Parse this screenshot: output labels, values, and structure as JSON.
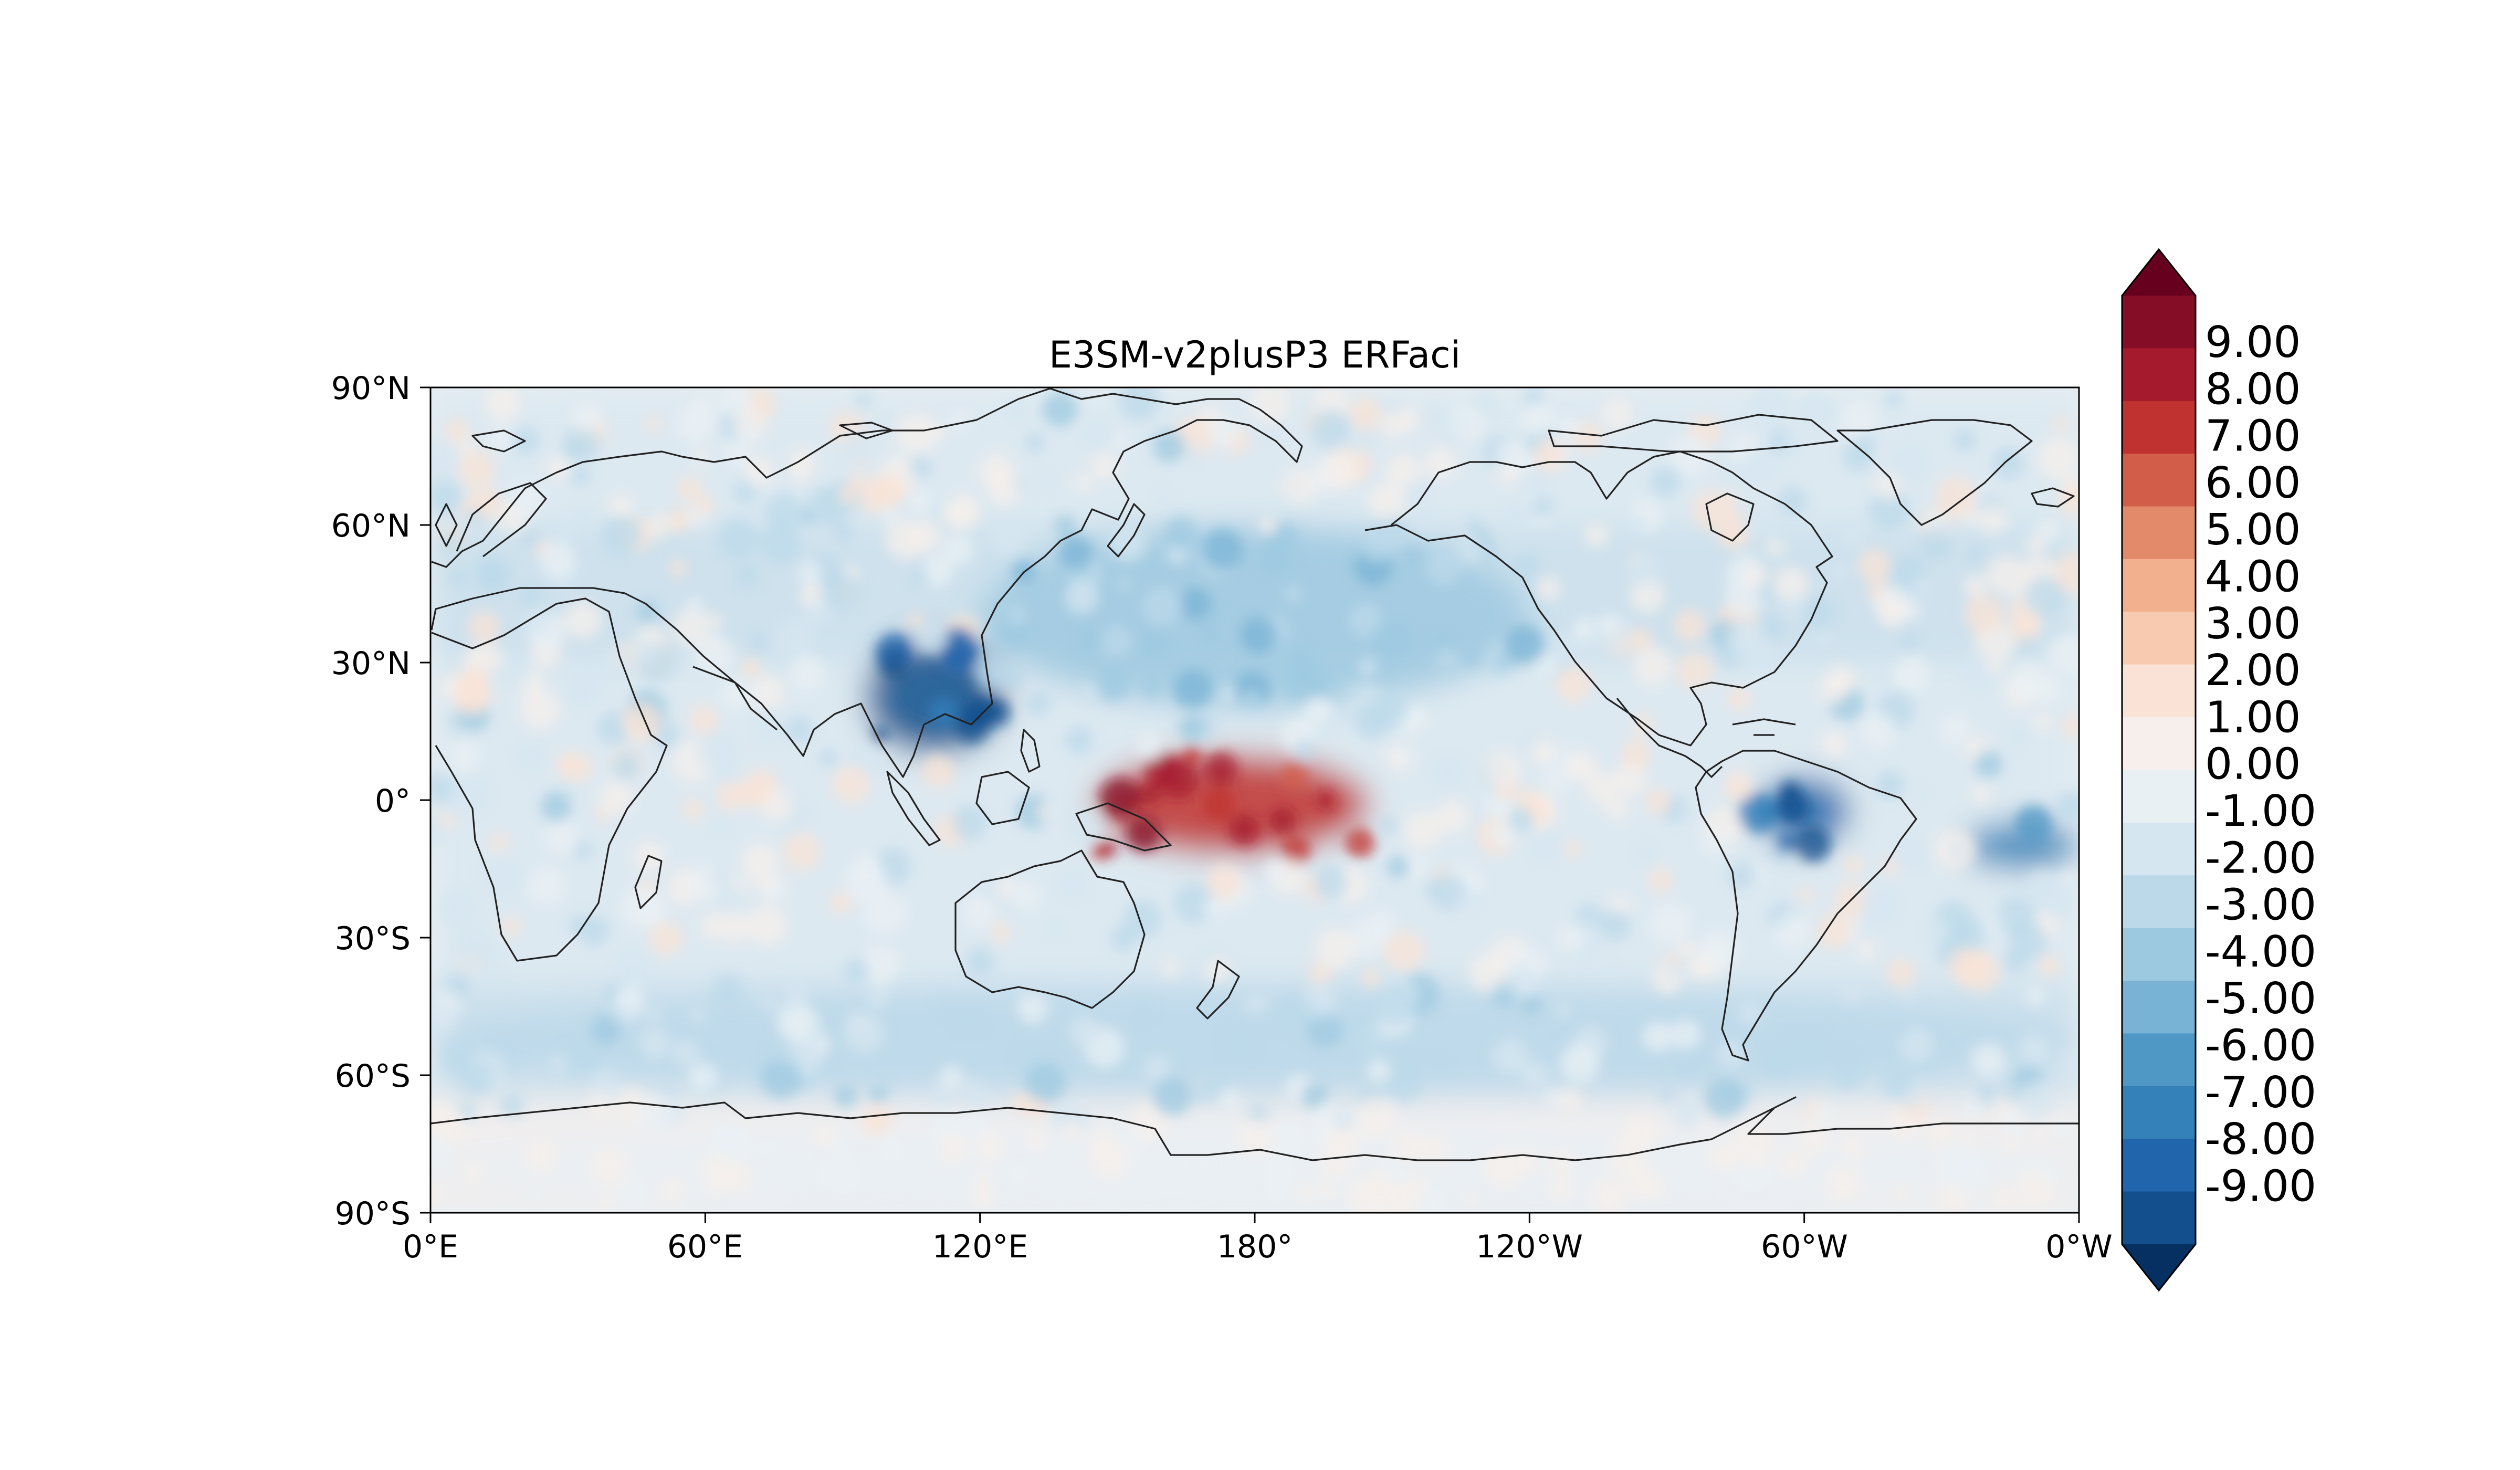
{
  "title": "E3SM-v2plusP3 ERFaci",
  "axes": {
    "x_ticks": [
      "0°E",
      "60°E",
      "120°E",
      "180°",
      "120°W",
      "60°W",
      "0°W"
    ],
    "y_ticks": [
      "90°N",
      "60°N",
      "30°N",
      "0°",
      "30°S",
      "60°S",
      "90°S"
    ],
    "lon_range": [
      0,
      360
    ],
    "lat_range": [
      -90,
      90
    ]
  },
  "colorbar": {
    "labels": [
      "9.00",
      "8.00",
      "7.00",
      "6.00",
      "5.00",
      "4.00",
      "3.00",
      "2.00",
      "1.00",
      "0.00",
      "-1.00",
      "-2.00",
      "-3.00",
      "-4.00",
      "-5.00",
      "-6.00",
      "-7.00",
      "-8.00",
      "-9.00"
    ],
    "extend": "both",
    "colors_top_to_bottom": [
      "#67001f",
      "#860d26",
      "#a51a2c",
      "#c0322f",
      "#d25e4a",
      "#e38a6b",
      "#f3b08e",
      "#f8cbb1",
      "#fae3d6",
      "#f6efeb",
      "#e9f0f4",
      "#d5e6f0",
      "#bcd9ea",
      "#9dc9e0",
      "#78b3d5",
      "#4f98c6",
      "#3480b9",
      "#2166ac",
      "#134f8d",
      "#053061"
    ],
    "colormap": "RdBu_r"
  },
  "chart_data": {
    "type": "heatmap",
    "title": "E3SM-v2plusP3 ERFaci",
    "xlabel": "",
    "ylabel": "",
    "projection": "PlateCarree",
    "xlim": [
      0,
      360
    ],
    "ylim": [
      -90,
      90
    ],
    "levels": [
      -9,
      -8,
      -7,
      -6,
      -5,
      -4,
      -3,
      -2,
      -1,
      0,
      1,
      2,
      3,
      4,
      5,
      6,
      7,
      8,
      9
    ],
    "features": [
      {
        "region": "central equatorial Pacific",
        "lon": [
          145,
          205
        ],
        "lat": [
          -12,
          10
        ],
        "value": 7
      },
      {
        "region": "South China Sea / Southeast Asia",
        "lon": [
          95,
          125
        ],
        "lat": [
          10,
          35
        ],
        "value": -8
      },
      {
        "region": "Amazon",
        "lon": [
          290,
          310
        ],
        "lat": [
          -10,
          5
        ],
        "value": -7
      },
      {
        "region": "tropical South Atlantic",
        "lon": [
          335,
          360
        ],
        "lat": [
          -15,
          -5
        ],
        "value": -6
      },
      {
        "region": "North Pacific",
        "lon": [
          120,
          240
        ],
        "lat": [
          20,
          60
        ],
        "value": -3
      },
      {
        "region": "Southern Ocean",
        "lon": [
          0,
          360
        ],
        "lat": [
          -65,
          -40
        ],
        "value": -2
      },
      {
        "region": "Antarctica",
        "lon": [
          0,
          360
        ],
        "lat": [
          -90,
          -70
        ],
        "value": 0
      }
    ]
  }
}
